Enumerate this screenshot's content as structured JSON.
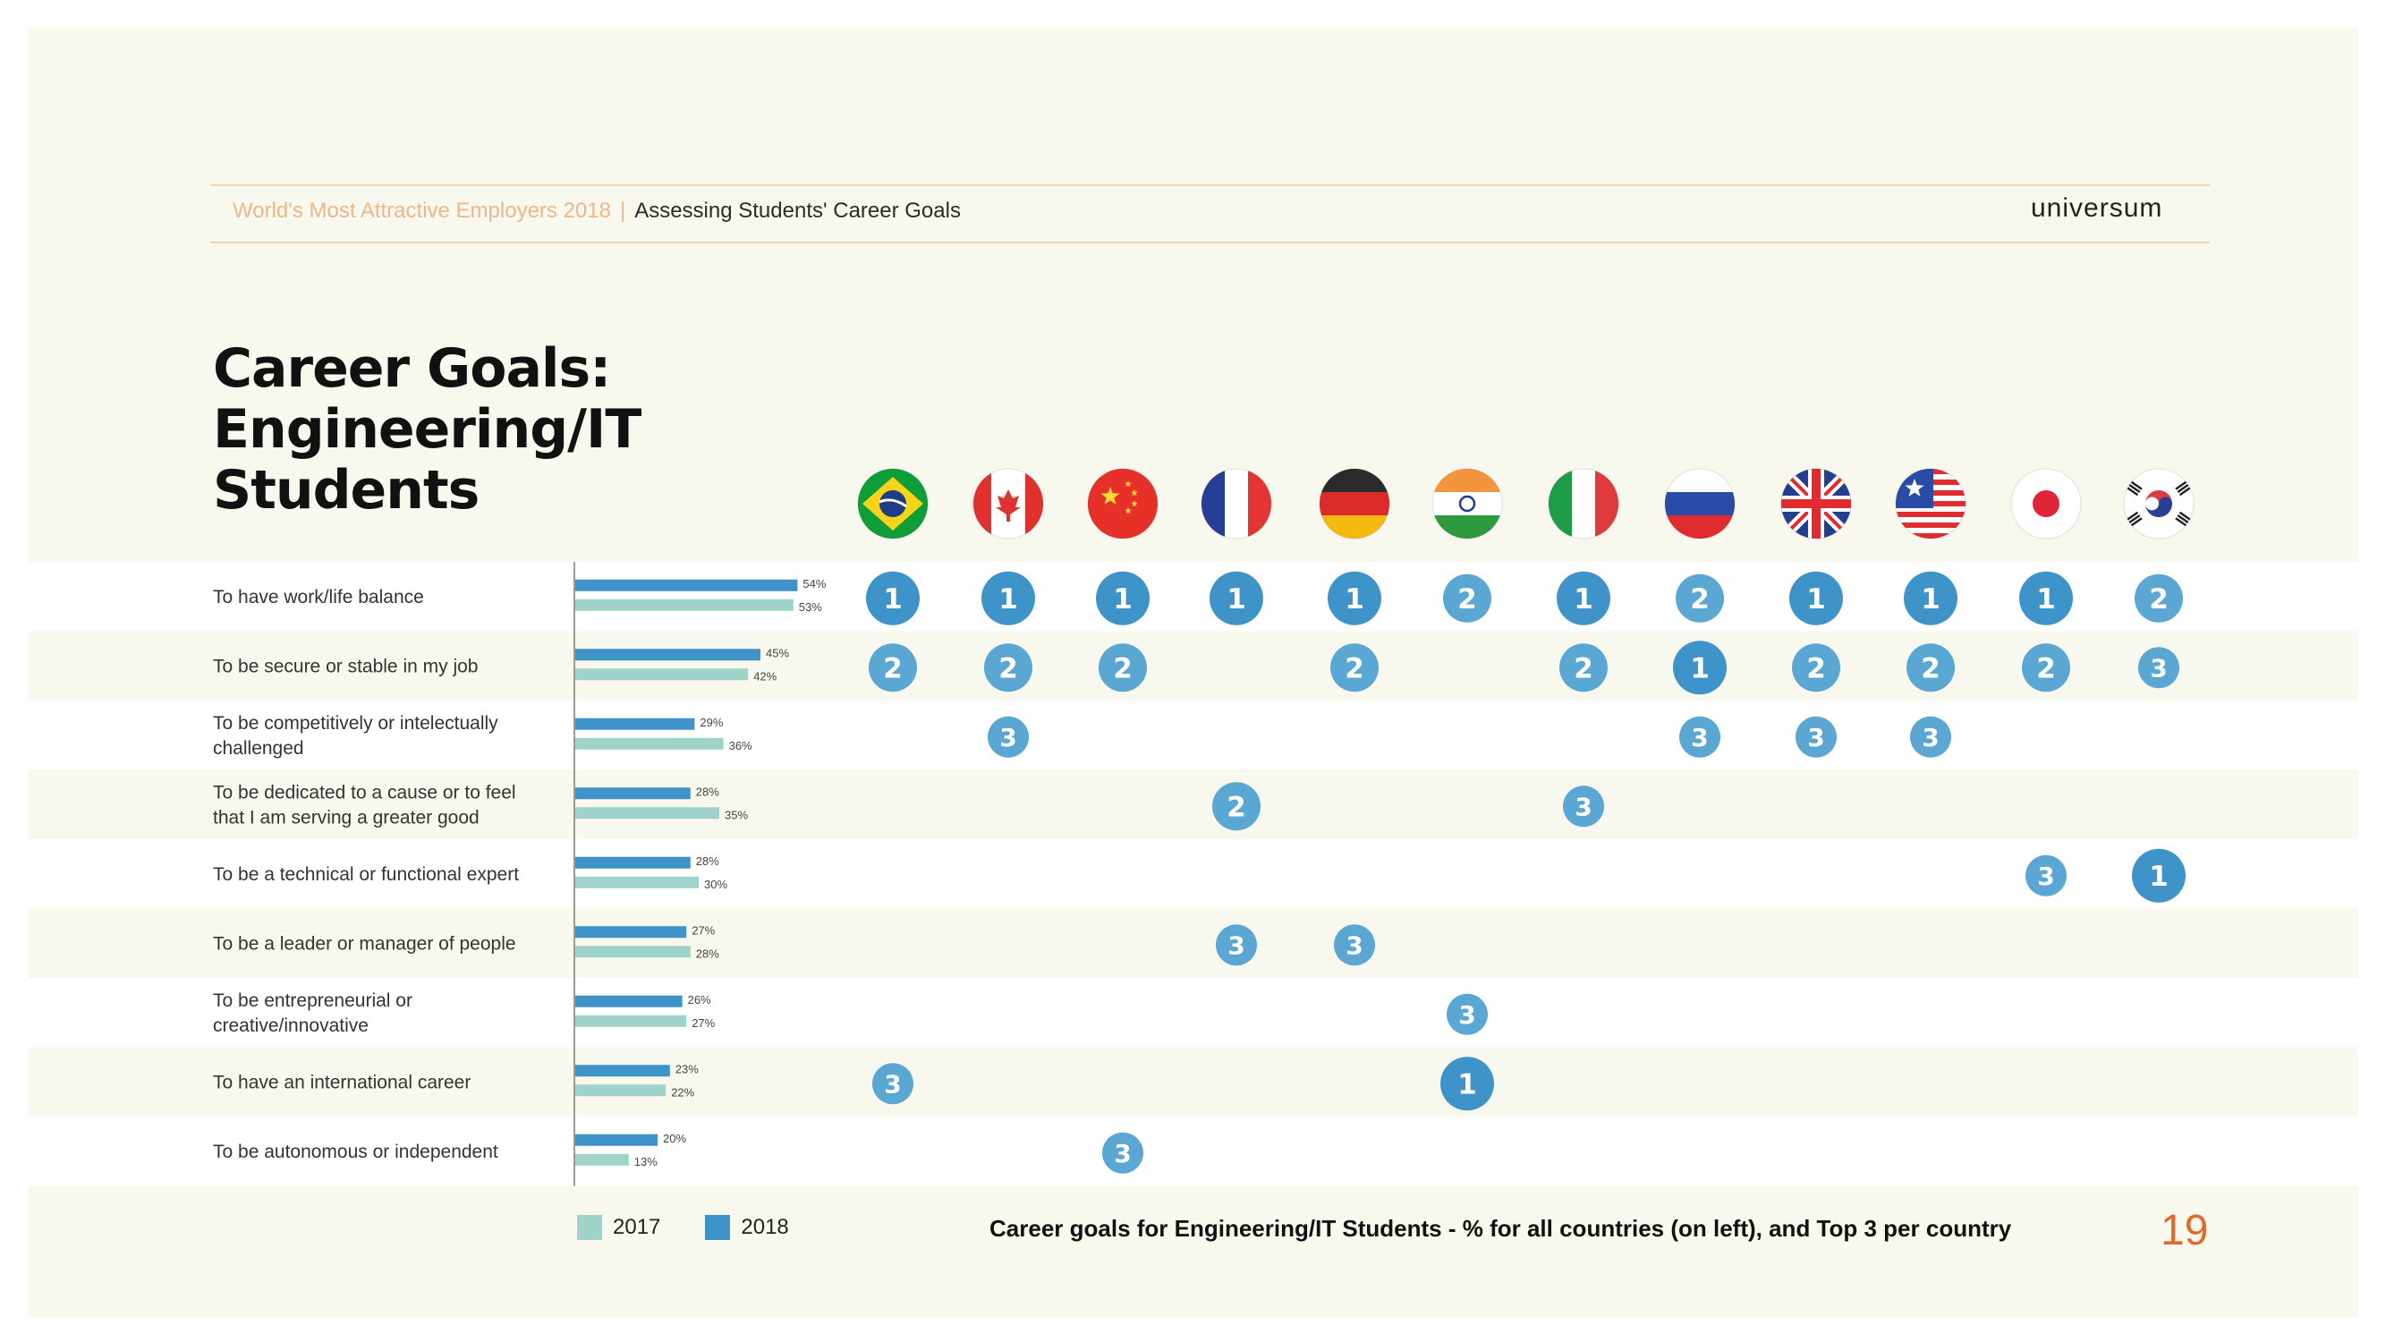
{
  "header": {
    "brand": "World's Most Attractive Employers 2018",
    "divider": "|",
    "section": "Assessing Students' Career Goals",
    "logo": "universum"
  },
  "title": "Career Goals: Engineering/IT Students",
  "legend": [
    {
      "label": "2017",
      "color": "#9fd3c9"
    },
    {
      "label": "2018",
      "color": "#3e94c8"
    }
  ],
  "caption": "Career goals for Engineering/IT Students - % for all countries (on left), and Top 3 per country",
  "page_number": "19",
  "chart_data": {
    "type": "bar",
    "orientation": "horizontal",
    "categories": [
      "To have work/life balance",
      "To be secure or stable in my job",
      "To be competitively or intelectually challenged",
      "To be dedicated to a cause or to feel that I am serving a greater good",
      "To be a technical or functional expert",
      "To be a leader or manager of people",
      "To be entrepreneurial or creative/innovative",
      "To have an international career",
      "To be autonomous or independent"
    ],
    "series": [
      {
        "name": "2018",
        "color": "#3e94c8",
        "values": [
          54,
          45,
          29,
          28,
          28,
          27,
          26,
          23,
          20
        ],
        "labels": [
          "54%",
          "45%",
          "29%",
          "28%",
          "28%",
          "27%",
          "26%",
          "23%",
          "20%"
        ]
      },
      {
        "name": "2017",
        "color": "#9fd3c9",
        "values": [
          53,
          42,
          36,
          35,
          30,
          28,
          27,
          22,
          13
        ],
        "labels": [
          "53%",
          "42%",
          "36%",
          "35%",
          "30%",
          "28%",
          "27%",
          "22%",
          "13%"
        ]
      }
    ],
    "xlim": [
      0,
      100
    ],
    "countries": [
      {
        "flag": "brazil-flag-icon"
      },
      {
        "flag": "canada-flag-icon"
      },
      {
        "flag": "china-flag-icon"
      },
      {
        "flag": "france-flag-icon"
      },
      {
        "flag": "germany-flag-icon"
      },
      {
        "flag": "india-flag-icon"
      },
      {
        "flag": "italy-flag-icon"
      },
      {
        "flag": "russia-flag-icon"
      },
      {
        "flag": "uk-flag-icon"
      },
      {
        "flag": "usa-flag-icon"
      },
      {
        "flag": "japan-flag-icon"
      },
      {
        "flag": "south-korea-flag-icon"
      }
    ],
    "ranks": [
      [
        1,
        1,
        1,
        1,
        1,
        2,
        1,
        2,
        1,
        1,
        1,
        2
      ],
      [
        2,
        2,
        2,
        null,
        2,
        null,
        2,
        1,
        2,
        2,
        2,
        3
      ],
      [
        null,
        3,
        null,
        null,
        null,
        null,
        null,
        3,
        3,
        3,
        null,
        null
      ],
      [
        null,
        null,
        null,
        2,
        null,
        null,
        3,
        null,
        null,
        null,
        null,
        null
      ],
      [
        null,
        null,
        null,
        null,
        null,
        null,
        null,
        null,
        null,
        null,
        3,
        1
      ],
      [
        null,
        null,
        null,
        3,
        3,
        null,
        null,
        null,
        null,
        null,
        null,
        null
      ],
      [
        null,
        null,
        null,
        null,
        null,
        3,
        null,
        null,
        null,
        null,
        null,
        null
      ],
      [
        3,
        null,
        null,
        null,
        null,
        1,
        null,
        null,
        null,
        null,
        null,
        null
      ],
      [
        null,
        null,
        3,
        null,
        null,
        null,
        null,
        null,
        null,
        null,
        null,
        null
      ]
    ]
  }
}
